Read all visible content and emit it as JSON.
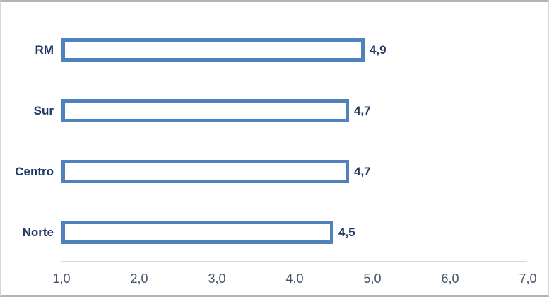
{
  "chart_data": {
    "type": "bar",
    "orientation": "horizontal",
    "title": "",
    "xlabel": "",
    "ylabel": "",
    "categories": [
      "RM",
      "Sur",
      "Centro",
      "Norte"
    ],
    "values": [
      4.9,
      4.7,
      4.7,
      4.5
    ],
    "value_labels": [
      "4,9",
      "4,7",
      "4,7",
      "4,5"
    ],
    "xlim": [
      1.0,
      7.0
    ],
    "x_tick_values": [
      1.0,
      2.0,
      3.0,
      4.0,
      5.0,
      6.0,
      7.0
    ],
    "x_tick_labels": [
      "1,0",
      "2,0",
      "3,0",
      "4,0",
      "5,0",
      "6,0",
      "7,0"
    ],
    "grid": false,
    "legend": false,
    "decimal_separator": ",",
    "colors": {
      "bar_fill": "#FFFFFF",
      "bar_border": "#4F81BD",
      "category_label": "#1F3864",
      "value_label": "#1F3864",
      "tick_label": "#44546A",
      "axis_line": "#D9D9D9",
      "chart_border": "#B3B3B3",
      "background": "#FFFFFF"
    }
  }
}
